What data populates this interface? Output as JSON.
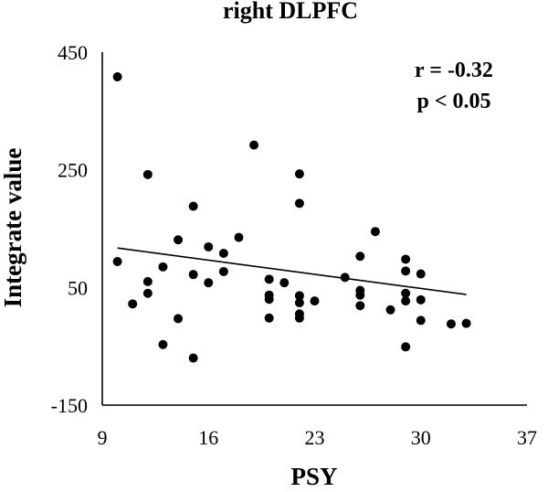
{
  "chart_data": {
    "type": "scatter",
    "title": "right DLPFC",
    "xlabel": "PSY",
    "ylabel": "Integrate value",
    "xlim": [
      9,
      37
    ],
    "ylim": [
      -150,
      450
    ],
    "xticks": [
      9,
      16,
      23,
      30,
      37
    ],
    "yticks": [
      -150,
      50,
      250,
      450
    ],
    "xtick_labels": [
      "9",
      "16",
      "23",
      "30",
      "37"
    ],
    "ytick_labels": [
      "-150",
      "50",
      "250",
      "450"
    ],
    "grid": false,
    "annotations": [
      "r = -0.32",
      "p < 0.05"
    ],
    "trendline": {
      "x": [
        10,
        33
      ],
      "y": [
        117,
        38
      ]
    },
    "points": [
      {
        "x": 10,
        "y": 408
      },
      {
        "x": 10,
        "y": 94
      },
      {
        "x": 11,
        "y": 22
      },
      {
        "x": 12,
        "y": 242
      },
      {
        "x": 12,
        "y": 60
      },
      {
        "x": 12,
        "y": 40
      },
      {
        "x": 13,
        "y": 85
      },
      {
        "x": 13,
        "y": -47
      },
      {
        "x": 14,
        "y": 131
      },
      {
        "x": 14,
        "y": -3
      },
      {
        "x": 15,
        "y": 188
      },
      {
        "x": 15,
        "y": 72
      },
      {
        "x": 15,
        "y": -70
      },
      {
        "x": 16,
        "y": 119
      },
      {
        "x": 16,
        "y": 58
      },
      {
        "x": 17,
        "y": 108
      },
      {
        "x": 17,
        "y": 77
      },
      {
        "x": 18,
        "y": 135
      },
      {
        "x": 19,
        "y": 292
      },
      {
        "x": 20,
        "y": 64
      },
      {
        "x": 20,
        "y": 37
      },
      {
        "x": 20,
        "y": 30
      },
      {
        "x": 20,
        "y": -2
      },
      {
        "x": 21,
        "y": 58
      },
      {
        "x": 22,
        "y": 243
      },
      {
        "x": 22,
        "y": 193
      },
      {
        "x": 22,
        "y": 36
      },
      {
        "x": 22,
        "y": 24
      },
      {
        "x": 22,
        "y": 5
      },
      {
        "x": 22,
        "y": -2
      },
      {
        "x": 23,
        "y": 27
      },
      {
        "x": 25,
        "y": 67
      },
      {
        "x": 26,
        "y": 103
      },
      {
        "x": 26,
        "y": 45
      },
      {
        "x": 26,
        "y": 37
      },
      {
        "x": 26,
        "y": 19
      },
      {
        "x": 27,
        "y": 145
      },
      {
        "x": 28,
        "y": 12
      },
      {
        "x": 29,
        "y": 98
      },
      {
        "x": 29,
        "y": 78
      },
      {
        "x": 29,
        "y": 40
      },
      {
        "x": 29,
        "y": 27
      },
      {
        "x": 29,
        "y": -51
      },
      {
        "x": 30,
        "y": 73
      },
      {
        "x": 30,
        "y": 29
      },
      {
        "x": 30,
        "y": -6
      },
      {
        "x": 32,
        "y": -12
      },
      {
        "x": 33,
        "y": -11
      }
    ]
  }
}
